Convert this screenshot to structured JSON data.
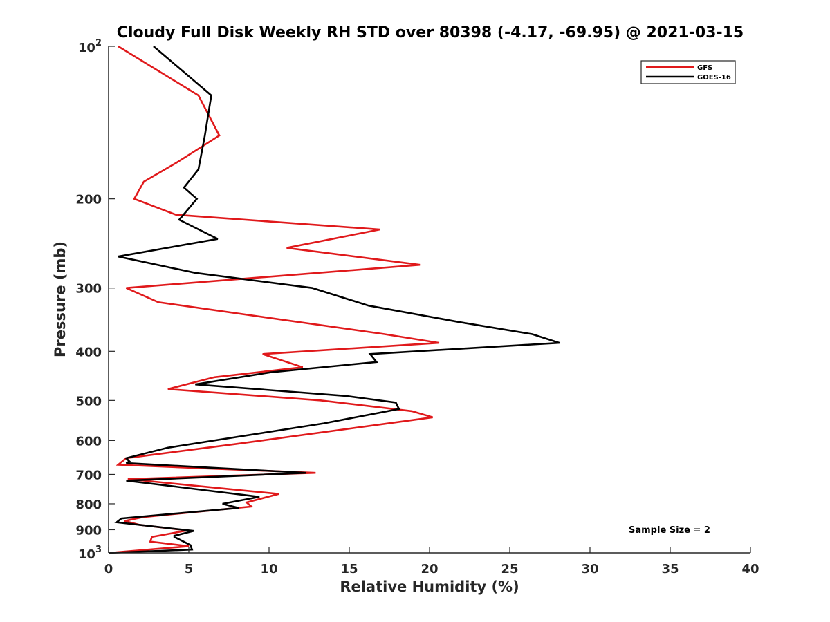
{
  "chart_data": {
    "type": "line",
    "title": "Cloudy Full Disk Weekly RH STD over 80398 (-4.17, -69.95) @ 2021-03-15",
    "xlabel": "Relative Humidity (%)",
    "ylabel": "Pressure (mb)",
    "xlim": [
      0,
      40
    ],
    "ylim": [
      100,
      1000
    ],
    "yscale": "log",
    "y_reversed": true,
    "xticks": [
      0,
      5,
      10,
      15,
      20,
      25,
      30,
      35,
      40
    ],
    "xtick_labels": [
      "0",
      "5",
      "10",
      "15",
      "20",
      "25",
      "30",
      "35",
      "40"
    ],
    "yticks": [
      {
        "value": 100,
        "base": "10",
        "exp": "2"
      },
      {
        "value": 200,
        "label": "200"
      },
      {
        "value": 300,
        "label": "300"
      },
      {
        "value": 400,
        "label": "400"
      },
      {
        "value": 500,
        "label": "500"
      },
      {
        "value": 600,
        "label": "600"
      },
      {
        "value": 700,
        "label": "700"
      },
      {
        "value": 800,
        "label": "800"
      },
      {
        "value": 900,
        "label": "900"
      },
      {
        "value": 1000,
        "base": "10",
        "exp": "3"
      }
    ],
    "legend": {
      "position": "top-right",
      "entries": [
        "GFS",
        "GOES-16"
      ]
    },
    "annotation": "Sample Size = 2",
    "series": [
      {
        "name": "GFS",
        "color": "#e0191b",
        "points": [
          [
            0.6,
            100
          ],
          [
            5.6,
            125
          ],
          [
            6.9,
            150
          ],
          [
            4.2,
            170
          ],
          [
            2.2,
            185
          ],
          [
            1.6,
            200
          ],
          [
            4.2,
            215
          ],
          [
            16.9,
            230
          ],
          [
            11.1,
            250
          ],
          [
            19.4,
            270
          ],
          [
            1.1,
            300
          ],
          [
            3.1,
            320
          ],
          [
            17.2,
            370
          ],
          [
            20.6,
            385
          ],
          [
            9.6,
            405
          ],
          [
            12.1,
            430
          ],
          [
            6.6,
            450
          ],
          [
            3.7,
            475
          ],
          [
            13.2,
            500
          ],
          [
            18.9,
            525
          ],
          [
            20.2,
            540
          ],
          [
            7.9,
            610
          ],
          [
            1.1,
            650
          ],
          [
            0.6,
            670
          ],
          [
            12.9,
            695
          ],
          [
            1.2,
            715
          ],
          [
            10.6,
            765
          ],
          [
            8.6,
            795
          ],
          [
            8.9,
            810
          ],
          [
            2.1,
            850
          ],
          [
            1.0,
            865
          ],
          [
            1.9,
            880
          ],
          [
            4.9,
            903
          ],
          [
            2.7,
            930
          ],
          [
            2.6,
            950
          ],
          [
            5.0,
            970
          ],
          [
            0.0,
            1000
          ]
        ]
      },
      {
        "name": "GOES-16",
        "color": "#000000",
        "points": [
          [
            2.8,
            100
          ],
          [
            6.4,
            125
          ],
          [
            6.0,
            150
          ],
          [
            5.6,
            175
          ],
          [
            4.7,
            190
          ],
          [
            5.5,
            200
          ],
          [
            4.4,
            220
          ],
          [
            6.8,
            240
          ],
          [
            0.6,
            260
          ],
          [
            5.4,
            280
          ],
          [
            12.7,
            300
          ],
          [
            16.2,
            325
          ],
          [
            21.8,
            350
          ],
          [
            26.4,
            370
          ],
          [
            28.1,
            385
          ],
          [
            16.3,
            405
          ],
          [
            16.7,
            420
          ],
          [
            10.1,
            440
          ],
          [
            5.4,
            465
          ],
          [
            14.8,
            490
          ],
          [
            17.9,
            505
          ],
          [
            18.1,
            520
          ],
          [
            13.4,
            555
          ],
          [
            3.7,
            620
          ],
          [
            1.1,
            650
          ],
          [
            1.3,
            660
          ],
          [
            1.1,
            665
          ],
          [
            12.3,
            695
          ],
          [
            1.1,
            720
          ],
          [
            9.4,
            775
          ],
          [
            7.1,
            800
          ],
          [
            8.1,
            815
          ],
          [
            0.8,
            855
          ],
          [
            0.5,
            870
          ],
          [
            5.3,
            905
          ],
          [
            4.1,
            925
          ],
          [
            4.1,
            930
          ],
          [
            5.1,
            965
          ],
          [
            5.2,
            985
          ],
          [
            0.0,
            1000
          ]
        ]
      }
    ]
  }
}
